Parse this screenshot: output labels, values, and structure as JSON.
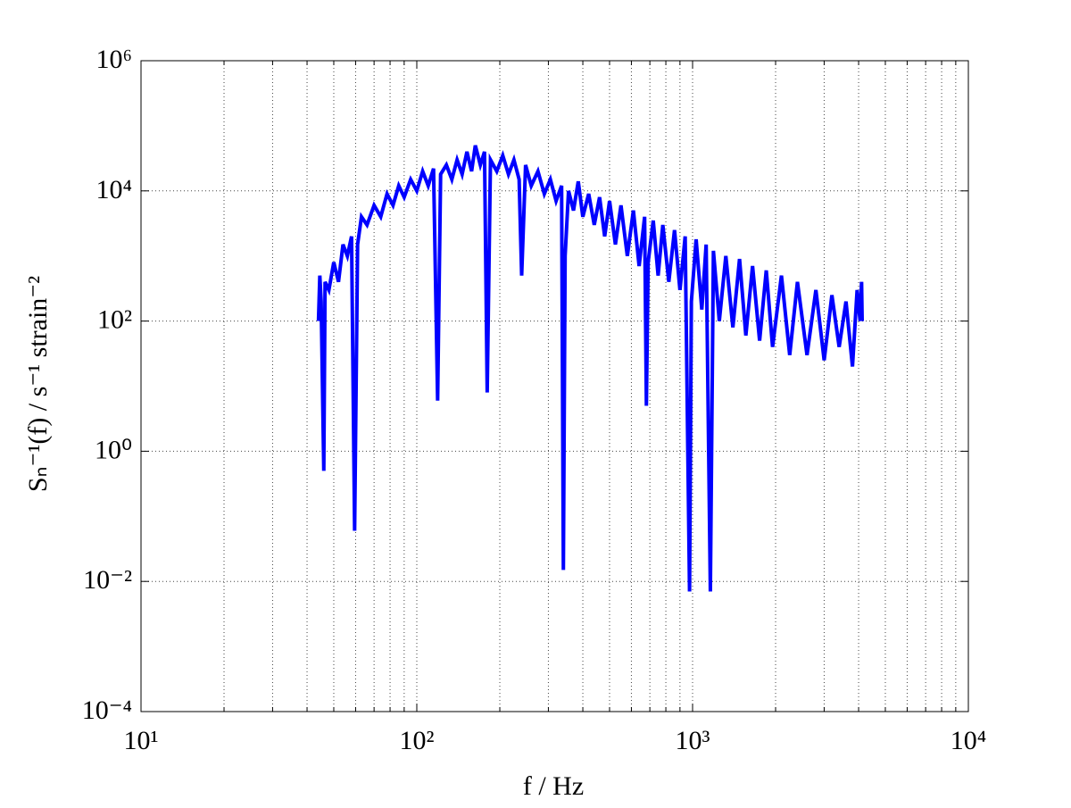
{
  "chart_data": {
    "type": "line",
    "xscale": "log",
    "yscale": "log",
    "grid": true,
    "xlabel": "f / Hz",
    "ylabel": "Sₙ⁻¹(f) / s⁻¹ strain⁻²",
    "xlim": [
      10,
      10000
    ],
    "ylim": [
      0.0001,
      1000000
    ],
    "xticks": [
      {
        "value": 10,
        "label": "10¹"
      },
      {
        "value": 100,
        "label": "10²"
      },
      {
        "value": 1000,
        "label": "10³"
      },
      {
        "value": 10000,
        "label": "10⁴"
      }
    ],
    "xminorticks": [
      20,
      30,
      40,
      50,
      60,
      70,
      80,
      90,
      200,
      300,
      400,
      500,
      600,
      700,
      800,
      900,
      2000,
      3000,
      4000,
      5000,
      6000,
      7000,
      8000,
      9000
    ],
    "yticks": [
      {
        "value": 0.0001,
        "label": "10⁻⁴"
      },
      {
        "value": 0.01,
        "label": "10⁻²"
      },
      {
        "value": 1,
        "label": "10⁰"
      },
      {
        "value": 100,
        "label": "10²"
      },
      {
        "value": 10000,
        "label": "10⁴"
      },
      {
        "value": 1000000,
        "label": "10⁶"
      }
    ],
    "x": [
      44,
      44.5,
      45,
      46,
      46.5,
      48,
      50,
      52,
      54,
      56,
      58,
      59.5,
      61,
      63,
      66,
      70,
      74,
      78,
      82,
      86,
      90,
      95,
      100,
      105,
      110,
      115,
      119,
      122,
      128,
      134,
      140,
      146,
      152,
      158,
      163,
      170,
      176,
      180,
      185,
      195,
      205,
      215,
      225,
      235,
      240,
      248,
      260,
      275,
      290,
      305,
      320,
      335,
      340,
      345,
      355,
      370,
      385,
      400,
      420,
      440,
      460,
      480,
      500,
      525,
      550,
      580,
      610,
      640,
      670,
      680,
      690,
      720,
      750,
      780,
      820,
      860,
      900,
      940,
      975,
      990,
      1030,
      1080,
      1120,
      1160,
      1190,
      1250,
      1320,
      1400,
      1480,
      1560,
      1650,
      1750,
      1850,
      1950,
      2100,
      2250,
      2400,
      2600,
      2800,
      3000,
      3200,
      3400,
      3600,
      3800,
      3950,
      4050,
      4100,
      4120
    ],
    "series": [
      {
        "color": "#0000ff",
        "values": [
          100,
          500,
          200,
          0.5,
          400,
          300,
          800,
          400,
          1500,
          1000,
          2000,
          0.06,
          1500,
          4000,
          3000,
          6000,
          4000,
          9000,
          6000,
          12000,
          8000,
          15000,
          10000,
          20000,
          12000,
          22000,
          6,
          18000,
          25000,
          15000,
          30000,
          18000,
          40000,
          20000,
          50000,
          25000,
          40000,
          8,
          30000,
          20000,
          35000,
          18000,
          30000,
          15000,
          500,
          25000,
          12000,
          20000,
          9000,
          15000,
          7000,
          12000,
          0.015,
          1000,
          10000,
          5000,
          14000,
          4000,
          9000,
          3000,
          8000,
          2000,
          7000,
          1500,
          6000,
          1000,
          5000,
          700,
          4000,
          5,
          800,
          3500,
          500,
          3000,
          400,
          2500,
          300,
          2000,
          0.007,
          200,
          1800,
          150,
          1500,
          0.007,
          1200,
          100,
          1000,
          80,
          900,
          60,
          700,
          50,
          600,
          40,
          500,
          30,
          400,
          30,
          300,
          25,
          250,
          40,
          200,
          20,
          300,
          100,
          400,
          100
        ]
      }
    ]
  }
}
